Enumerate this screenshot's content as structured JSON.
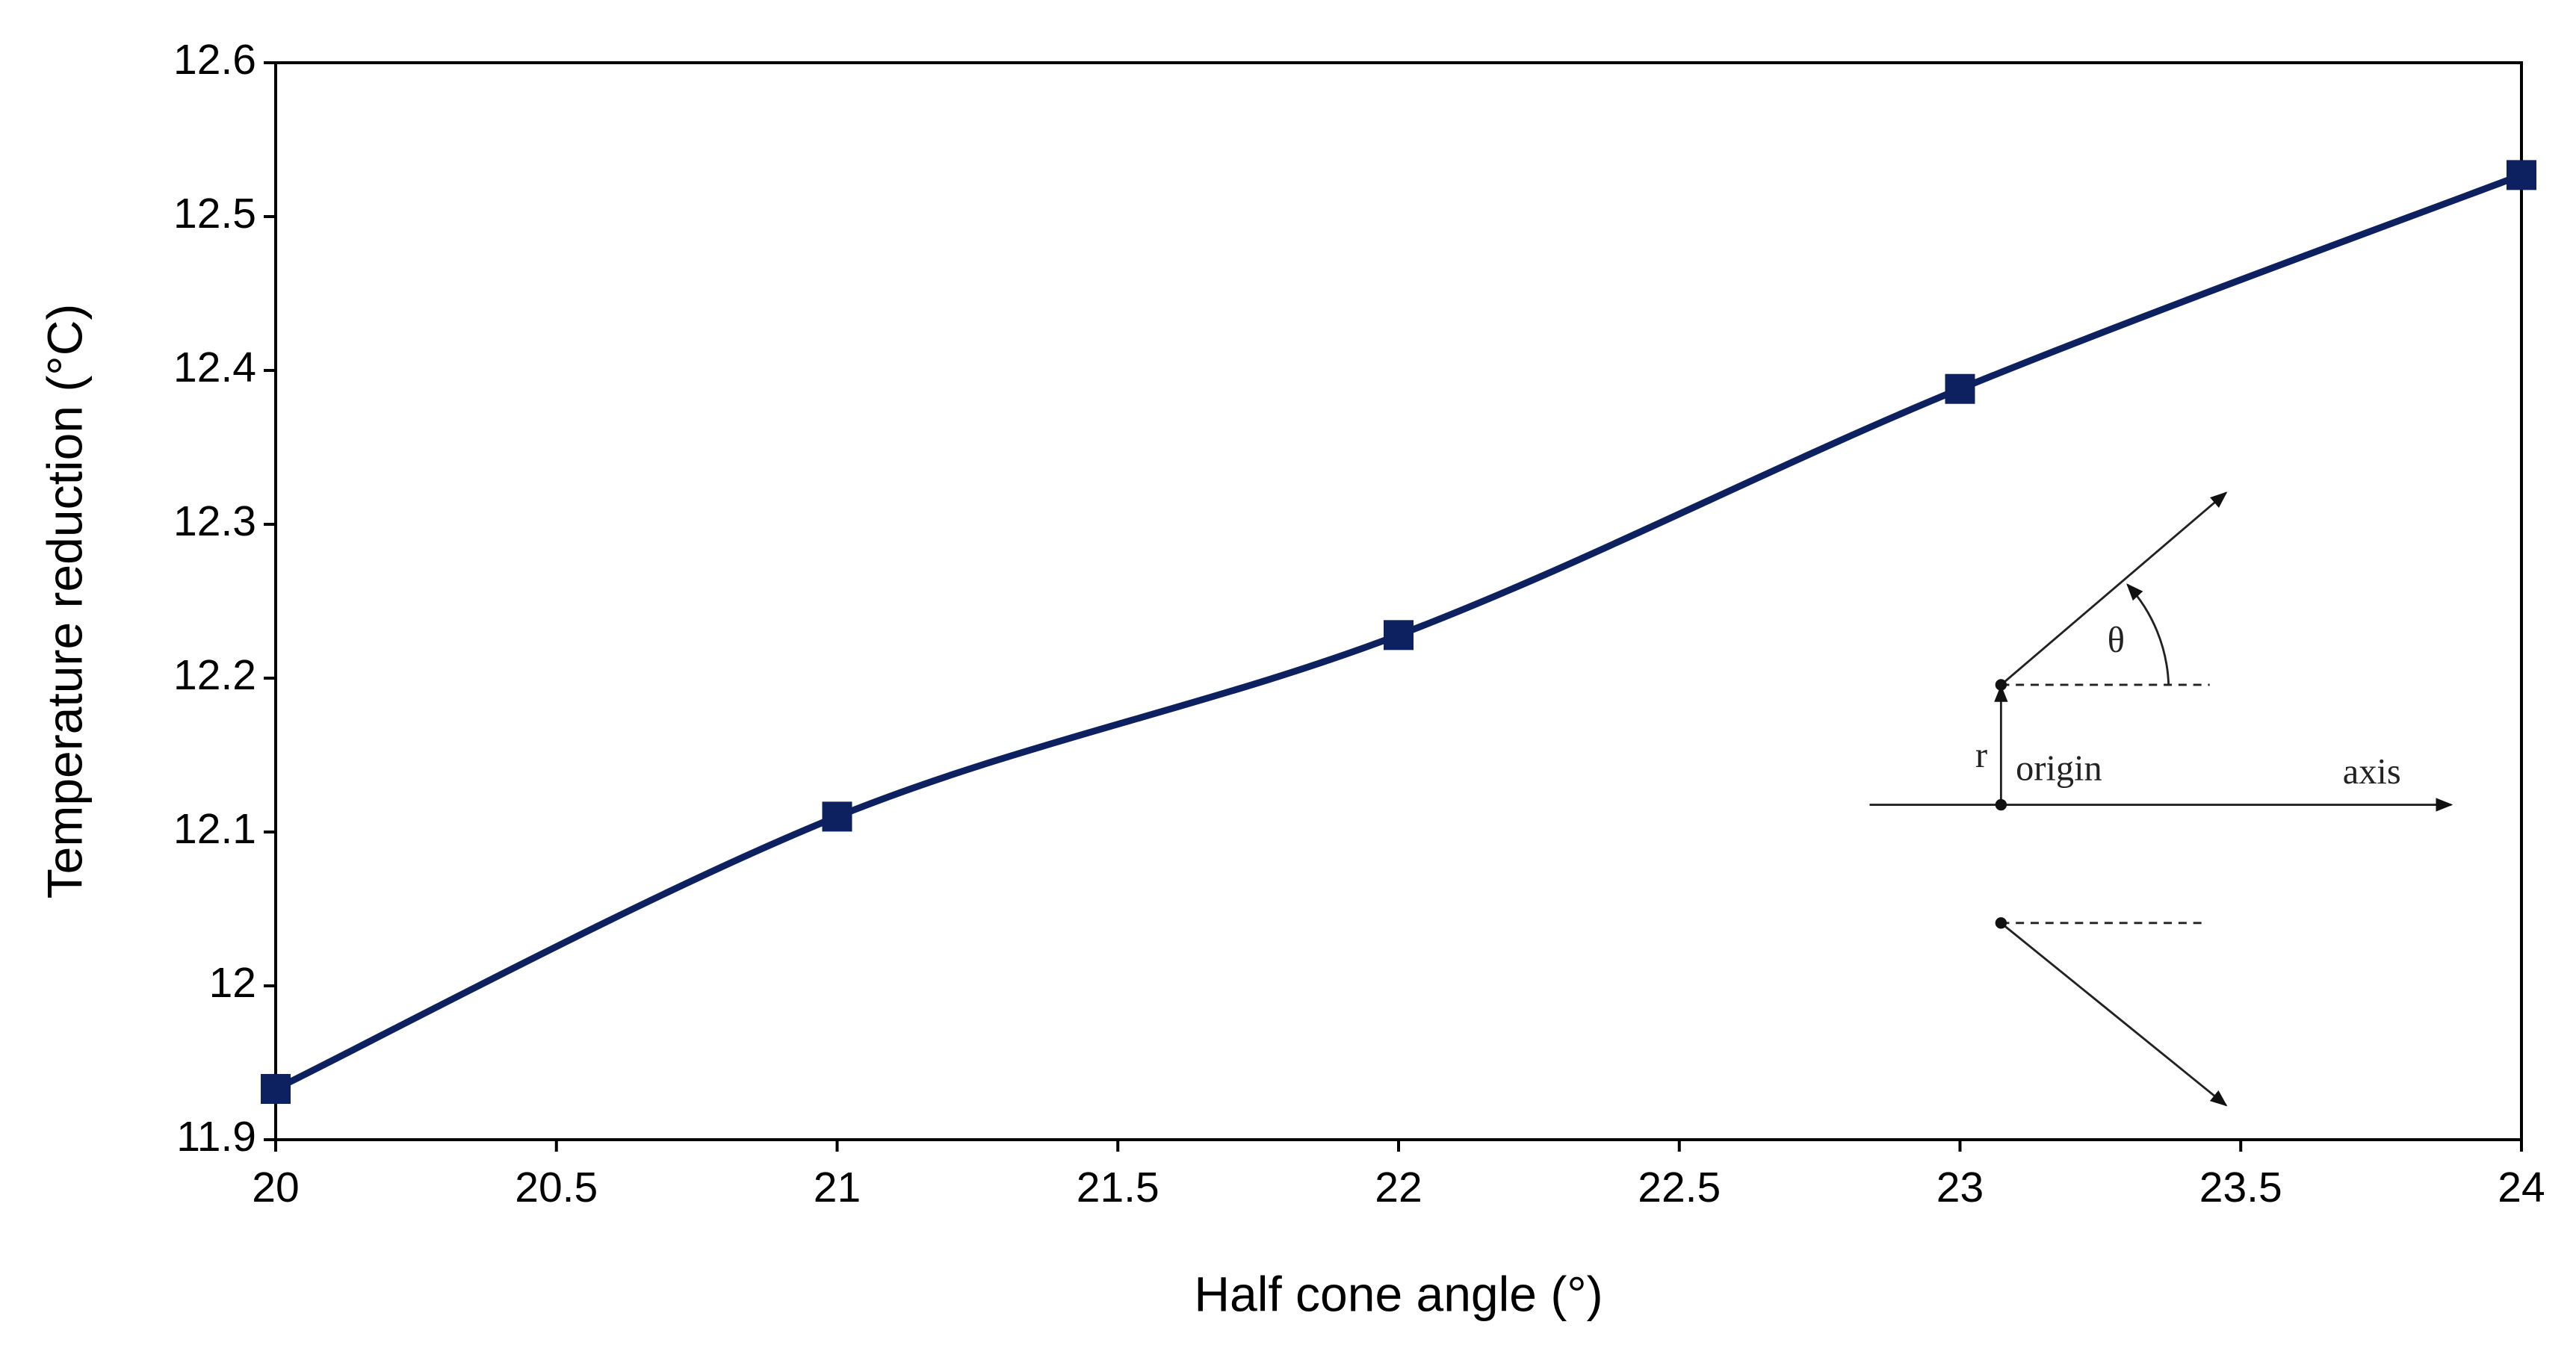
{
  "chart_data": {
    "type": "line",
    "x_label": "Half cone angle (°)",
    "y_label": "Temperature reduction (°C)",
    "x": [
      20,
      21,
      22,
      23,
      24
    ],
    "series": [
      {
        "color": "#0d2160",
        "values": [
          11.933,
          12.11,
          12.228,
          12.388,
          12.527
        ]
      }
    ],
    "xlim": [
      20,
      24
    ],
    "xticks": [
      20,
      20.5,
      21,
      21.5,
      22,
      22.5,
      23,
      23.5,
      24
    ],
    "ylim": [
      11.9,
      12.6
    ],
    "yticks": [
      11.9,
      12,
      12.1,
      12.2,
      12.3,
      12.4,
      12.5,
      12.6
    ],
    "grid": false,
    "smooth": true,
    "marker": "square",
    "inset_labels": {
      "theta": "θ",
      "r": "r",
      "origin": "origin",
      "axis": "axis"
    }
  }
}
